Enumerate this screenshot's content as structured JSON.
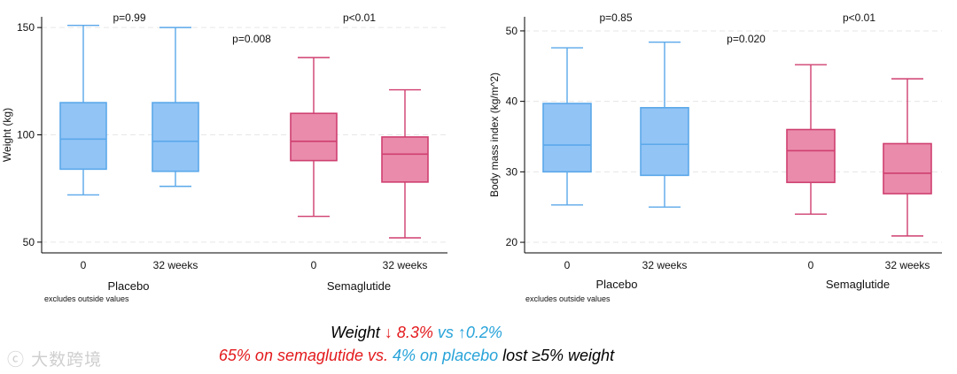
{
  "chart_data": [
    {
      "type": "box",
      "ylabel": "Weight (kg)",
      "yticks": [
        50,
        100,
        150
      ],
      "ylim": [
        45,
        155
      ],
      "grid": true,
      "groups": [
        {
          "name": "Placebo",
          "ptext": "p=0.99",
          "color": "#5ba8ea",
          "fill": "#92c4f6",
          "boxes": [
            {
              "label": "0",
              "min": 72,
              "q1": 84,
              "median": 98,
              "q3": 115,
              "max": 151
            },
            {
              "label": "32 weeks",
              "min": 76,
              "q1": 83,
              "median": 97,
              "q3": 115,
              "max": 150
            }
          ]
        },
        {
          "name": "Semaglutide",
          "ptext": "p<0.01",
          "color": "#cf3f70",
          "fill": "#ea8bab",
          "boxes": [
            {
              "label": "0",
              "min": 62,
              "q1": 88,
              "median": 97,
              "q3": 110,
              "max": 136
            },
            {
              "label": "32 weeks",
              "min": 52,
              "q1": 78,
              "median": 91,
              "q3": 99,
              "max": 121
            }
          ]
        }
      ],
      "between_p": "p=0.008",
      "note": "excludes outside values"
    },
    {
      "type": "box",
      "ylabel": "Body mass index (kg/m^2)",
      "yticks": [
        20,
        30,
        40,
        50
      ],
      "ylim": [
        18.5,
        52
      ],
      "grid": true,
      "groups": [
        {
          "name": "Placebo",
          "ptext": "p=0.85",
          "color": "#5ba8ea",
          "fill": "#92c4f6",
          "boxes": [
            {
              "label": "0",
              "min": 25.3,
              "q1": 30,
              "median": 33.8,
              "q3": 39.7,
              "max": 47.6
            },
            {
              "label": "32 weeks",
              "min": 25,
              "q1": 29.5,
              "median": 33.9,
              "q3": 39.1,
              "max": 48.4
            }
          ]
        },
        {
          "name": "Semaglutide",
          "ptext": "p<0.01",
          "color": "#cf3f70",
          "fill": "#ea8bab",
          "boxes": [
            {
              "label": "0",
              "min": 24,
              "q1": 28.5,
              "median": 33,
              "q3": 36,
              "max": 45.2
            },
            {
              "label": "32 weeks",
              "min": 20.9,
              "q1": 26.9,
              "median": 29.8,
              "q3": 34,
              "max": 43.2
            }
          ]
        }
      ],
      "between_p": "p=0.020",
      "note": "excludes outside values"
    }
  ],
  "summary": {
    "line1": [
      {
        "text": "Weight ",
        "color": "black"
      },
      {
        "text": "↓ 8.3% ",
        "color": "red"
      },
      {
        "text": "vs ↑0.2%",
        "color": "blue"
      }
    ],
    "line2": [
      {
        "text": "65% on semaglutide vs. ",
        "color": "red"
      },
      {
        "text": "4% on placebo ",
        "color": "blue"
      },
      {
        "text": "lost ≥5% weight",
        "color": "black"
      }
    ]
  },
  "watermark": "大数跨境"
}
